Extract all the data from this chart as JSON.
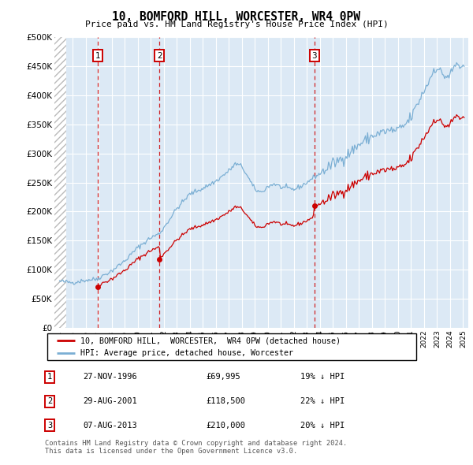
{
  "title": "10, BOMFORD HILL, WORCESTER, WR4 0PW",
  "subtitle": "Price paid vs. HM Land Registry's House Price Index (HPI)",
  "hpi_color": "#7bafd4",
  "price_color": "#cc0000",
  "vline_color": "#cc0000",
  "sale_dates_numeric": [
    1996.917,
    2001.667,
    2013.583
  ],
  "sale_prices": [
    69995,
    118500,
    210000
  ],
  "ylim": [
    0,
    500000
  ],
  "yticks": [
    0,
    50000,
    100000,
    150000,
    200000,
    250000,
    300000,
    350000,
    400000,
    450000,
    500000
  ],
  "legend_label_price": "10, BOMFORD HILL,  WORCESTER,  WR4 0PW (detached house)",
  "legend_label_hpi": "HPI: Average price, detached house, Worcester",
  "table_rows": [
    {
      "num": "1",
      "date": "27-NOV-1996",
      "price": "£69,995",
      "hpi": "19% ↓ HPI"
    },
    {
      "num": "2",
      "date": "29-AUG-2001",
      "price": "£118,500",
      "hpi": "22% ↓ HPI"
    },
    {
      "num": "3",
      "date": "07-AUG-2013",
      "price": "£210,000",
      "hpi": "20% ↓ HPI"
    }
  ],
  "footer": "Contains HM Land Registry data © Crown copyright and database right 2024.\nThis data is licensed under the Open Government Licence v3.0."
}
